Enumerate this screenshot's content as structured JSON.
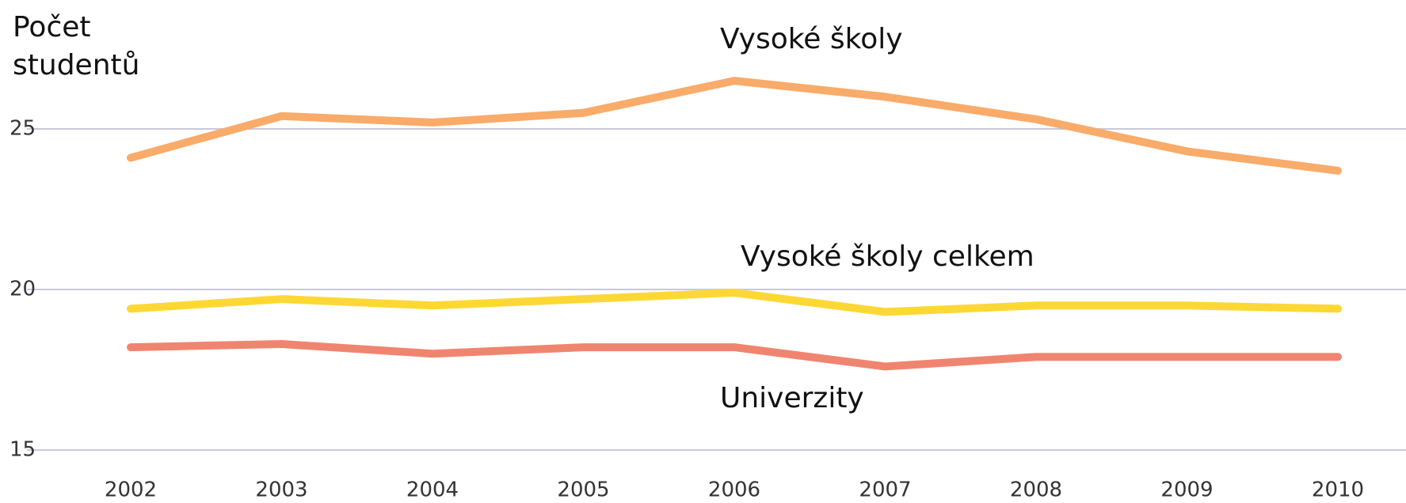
{
  "chart_data": {
    "type": "line",
    "y_label": [
      "Počet",
      "studentů"
    ],
    "categories": [
      "2002",
      "2003",
      "2004",
      "2005",
      "2006",
      "2007",
      "2008",
      "2009",
      "2010"
    ],
    "series": [
      {
        "name": "Vysoké školy",
        "color": "#f9ab6a",
        "values": [
          24.1,
          25.4,
          25.2,
          25.5,
          26.5,
          26.0,
          25.3,
          24.3,
          23.7
        ]
      },
      {
        "name": "Vysoké školy celkem",
        "color": "#fdd835",
        "values": [
          19.4,
          19.7,
          19.5,
          19.7,
          19.9,
          19.3,
          19.5,
          19.5,
          19.4
        ]
      },
      {
        "name": "Univerzity",
        "color": "#f0856f",
        "values": [
          18.2,
          18.3,
          18.0,
          18.2,
          18.2,
          17.6,
          17.9,
          17.9,
          17.9
        ]
      }
    ],
    "ylim": [
      15,
      28
    ],
    "yticks": [
      15,
      20,
      25
    ],
    "grid": true
  }
}
